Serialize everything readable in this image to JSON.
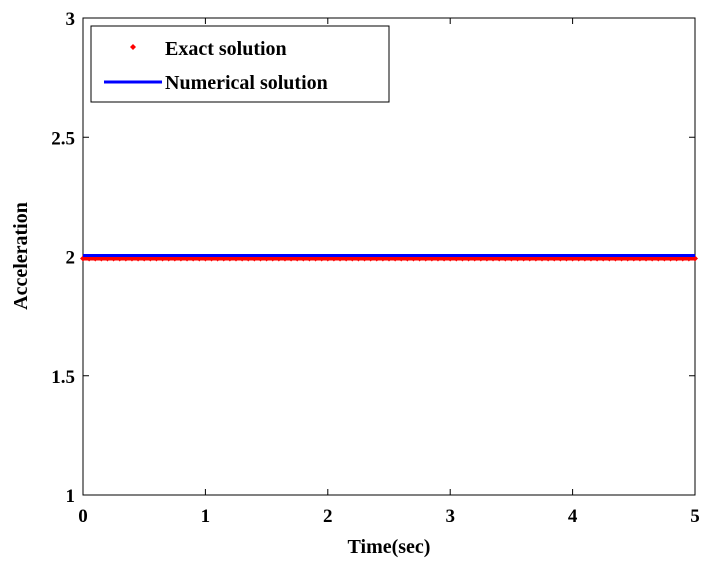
{
  "chart_data": {
    "type": "line",
    "title": "",
    "xlabel": "Time(sec)",
    "ylabel": "Acceleration",
    "xlim": [
      0,
      5
    ],
    "ylim": [
      1,
      3
    ],
    "xticks": [
      0,
      1,
      2,
      3,
      4,
      5
    ],
    "yticks": [
      1,
      1.5,
      2,
      2.5,
      3
    ],
    "xtick_labels": [
      "0",
      "1",
      "2",
      "3",
      "4",
      "5"
    ],
    "ytick_labels": [
      "1",
      "1.5",
      "2",
      "2.5",
      "3"
    ],
    "grid": false,
    "legend_position": "top-left",
    "series": [
      {
        "name": "Exact solution",
        "style": "markers",
        "color": "#ff0000",
        "x": [
          0,
          0.05,
          0.1,
          0.15,
          0.2,
          0.25,
          0.3,
          0.35,
          0.4,
          0.45,
          0.5,
          0.55,
          0.6,
          0.65,
          0.7,
          0.75,
          0.8,
          0.85,
          0.9,
          0.95,
          1,
          1.05,
          1.1,
          1.15,
          1.2,
          1.25,
          1.3,
          1.35,
          1.4,
          1.45,
          1.5,
          1.55,
          1.6,
          1.65,
          1.7,
          1.75,
          1.8,
          1.85,
          1.9,
          1.95,
          2,
          2.05,
          2.1,
          2.15,
          2.2,
          2.25,
          2.3,
          2.35,
          2.4,
          2.45,
          2.5,
          2.55,
          2.6,
          2.65,
          2.7,
          2.75,
          2.8,
          2.85,
          2.9,
          2.95,
          3,
          3.05,
          3.1,
          3.15,
          3.2,
          3.25,
          3.3,
          3.35,
          3.4,
          3.45,
          3.5,
          3.55,
          3.6,
          3.65,
          3.7,
          3.75,
          3.8,
          3.85,
          3.9,
          3.95,
          4,
          4.05,
          4.1,
          4.15,
          4.2,
          4.25,
          4.3,
          4.35,
          4.4,
          4.45,
          4.5,
          4.55,
          4.6,
          4.65,
          4.7,
          4.75,
          4.8,
          4.85,
          4.9,
          4.95,
          5
        ],
        "y_constant": 2
      },
      {
        "name": "Numerical solution",
        "style": "line",
        "color": "#0000ff",
        "x": [
          0,
          5
        ],
        "y": [
          2,
          2
        ]
      }
    ]
  }
}
